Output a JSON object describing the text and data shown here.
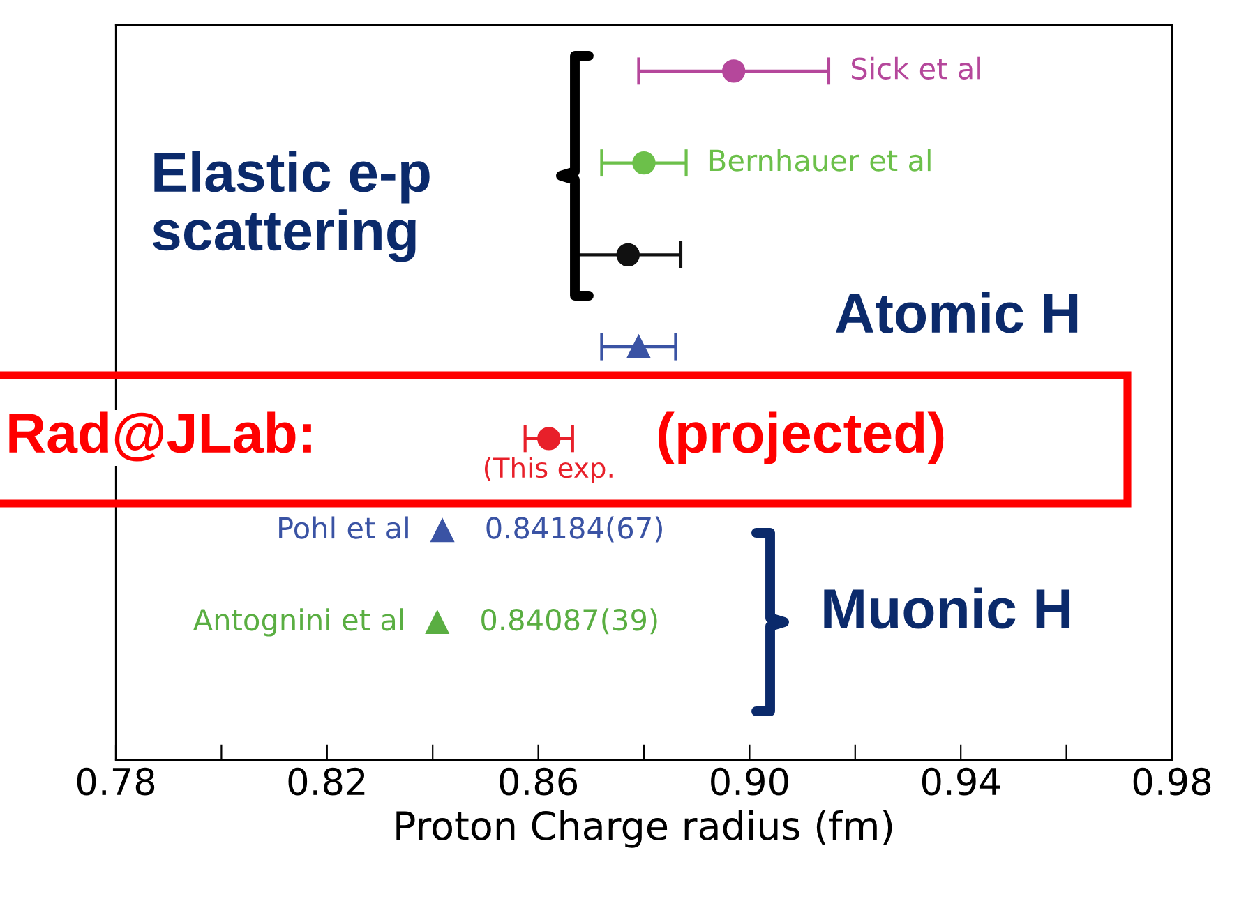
{
  "chart_data": {
    "type": "scatter",
    "orientation": "horizontal",
    "xlabel": "Proton Charge radius (fm)",
    "categories": [
      null,
      null,
      null,
      null,
      null,
      null,
      null,
      null
    ],
    "xlim": [
      0.78,
      0.98
    ],
    "xticks": [
      0.78,
      {
        "value": 0.8,
        "label": null
      },
      0.82,
      {
        "value": 0.84,
        "label": null
      },
      0.86,
      {
        "value": 0.88,
        "label": null
      },
      "0.90",
      {
        "value": 0.92,
        "label": null
      },
      0.94,
      {
        "value": 0.96,
        "label": null
      },
      0.98
    ],
    "tick_labels": "x",
    "grid": false,
    "series": [
      {
        "name": "Sick et al",
        "color": "#b5479b",
        "marker": "circle",
        "values": [
          0.897,
          null,
          null,
          null,
          null,
          null,
          null,
          null
        ],
        "errors": [
          0.018,
          null,
          null,
          null,
          null,
          null,
          null,
          null
        ]
      },
      {
        "name": "Bernhauer et al",
        "color": "#6cc04a",
        "marker": "circle",
        "values": [
          null,
          0.88,
          null,
          null,
          null,
          null,
          null,
          null
        ],
        "errors": [
          null,
          0.008,
          null,
          null,
          null,
          null,
          null,
          null
        ]
      },
      {
        "color": "#111111",
        "marker": "circle",
        "values": [
          null,
          null,
          0.877,
          null,
          null,
          null,
          null,
          null
        ],
        "errors": [
          null,
          null,
          0.01,
          null,
          null,
          null,
          null,
          null
        ]
      },
      {
        "color": "#3a53a4",
        "marker": "triangle",
        "values": [
          null,
          null,
          null,
          0.879,
          null,
          null,
          null,
          null
        ],
        "errors": [
          null,
          null,
          null,
          0.007,
          null,
          null,
          null,
          null
        ]
      },
      {
        "name": "(This exp.",
        "color": "#e8202a",
        "marker": "circle",
        "values": [
          null,
          null,
          null,
          null,
          0.862,
          null,
          null,
          null
        ],
        "errors": [
          null,
          null,
          null,
          null,
          0.0045,
          null,
          null,
          null
        ]
      },
      {
        "name": "Pohl et al",
        "color": "#3a53a4",
        "marker": "triangle",
        "values": [
          null,
          null,
          null,
          null,
          null,
          0.84184,
          null,
          null
        ],
        "value_labels": [
          null,
          null,
          null,
          null,
          null,
          "0.84184(67)",
          null,
          null
        ]
      },
      {
        "name": "Antognini et al",
        "color": "#5aae42",
        "marker": "triangle",
        "values": [
          null,
          null,
          null,
          null,
          null,
          null,
          0.84087,
          null
        ],
        "value_labels": [
          null,
          null,
          null,
          null,
          null,
          null,
          "0.84087(39)",
          null
        ]
      }
    ],
    "annotations": [
      "Elastic e-p\nscattering",
      "Atomic H",
      "Muonic H",
      "Rad@JLab:",
      "(projected)"
    ]
  }
}
